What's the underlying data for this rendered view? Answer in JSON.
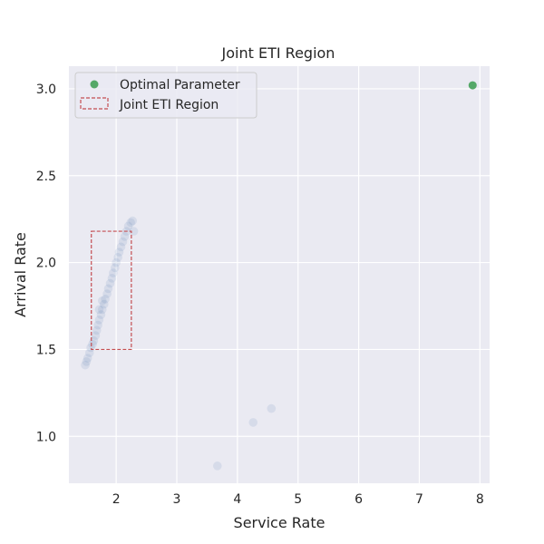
{
  "chart_data": {
    "type": "scatter",
    "title": "Joint ETI Region",
    "xlabel": "Service Rate",
    "ylabel": "Arrival Rate",
    "xlim": [
      1.22,
      8.16
    ],
    "ylim": [
      0.73,
      3.13
    ],
    "xticks": [
      2,
      3,
      4,
      5,
      6,
      7,
      8
    ],
    "yticks": [
      1.0,
      1.5,
      2.0,
      2.5,
      3.0
    ],
    "ytick_labels": [
      "1.0",
      "1.5",
      "2.0",
      "2.5",
      "3.0"
    ],
    "grid": true,
    "legend_position": "top-left",
    "series": [
      {
        "name": "",
        "kind": "samples",
        "color": "#4c72b0",
        "points": [
          [
            1.49,
            1.41
          ],
          [
            1.51,
            1.43
          ],
          [
            1.53,
            1.45
          ],
          [
            1.56,
            1.48
          ],
          [
            1.58,
            1.51
          ],
          [
            1.61,
            1.53
          ],
          [
            1.63,
            1.55
          ],
          [
            1.66,
            1.58
          ],
          [
            1.68,
            1.61
          ],
          [
            1.7,
            1.64
          ],
          [
            1.72,
            1.67
          ],
          [
            1.75,
            1.7
          ],
          [
            1.77,
            1.73
          ],
          [
            1.8,
            1.76
          ],
          [
            1.82,
            1.79
          ],
          [
            1.85,
            1.82
          ],
          [
            1.87,
            1.85
          ],
          [
            1.9,
            1.88
          ],
          [
            1.93,
            1.91
          ],
          [
            1.95,
            1.94
          ],
          [
            1.98,
            1.97
          ],
          [
            2.0,
            2.0
          ],
          [
            2.03,
            2.03
          ],
          [
            2.05,
            2.06
          ],
          [
            2.08,
            2.09
          ],
          [
            2.11,
            2.12
          ],
          [
            2.14,
            2.15
          ],
          [
            2.17,
            2.18
          ],
          [
            2.2,
            2.21
          ],
          [
            2.24,
            2.23
          ],
          [
            2.27,
            2.24
          ],
          [
            2.29,
            2.18
          ],
          [
            1.72,
            1.73
          ],
          [
            1.77,
            1.78
          ],
          [
            3.67,
            0.83
          ],
          [
            4.26,
            1.08
          ],
          [
            4.56,
            1.16
          ]
        ]
      },
      {
        "name": "Optimal Parameter",
        "kind": "point",
        "color": "#55a868",
        "points": [
          [
            7.88,
            3.02
          ]
        ]
      }
    ],
    "region": {
      "name": "Joint ETI Region",
      "color": "#c44e52",
      "x": [
        1.59,
        2.25
      ],
      "y": [
        1.5,
        2.18
      ]
    }
  }
}
